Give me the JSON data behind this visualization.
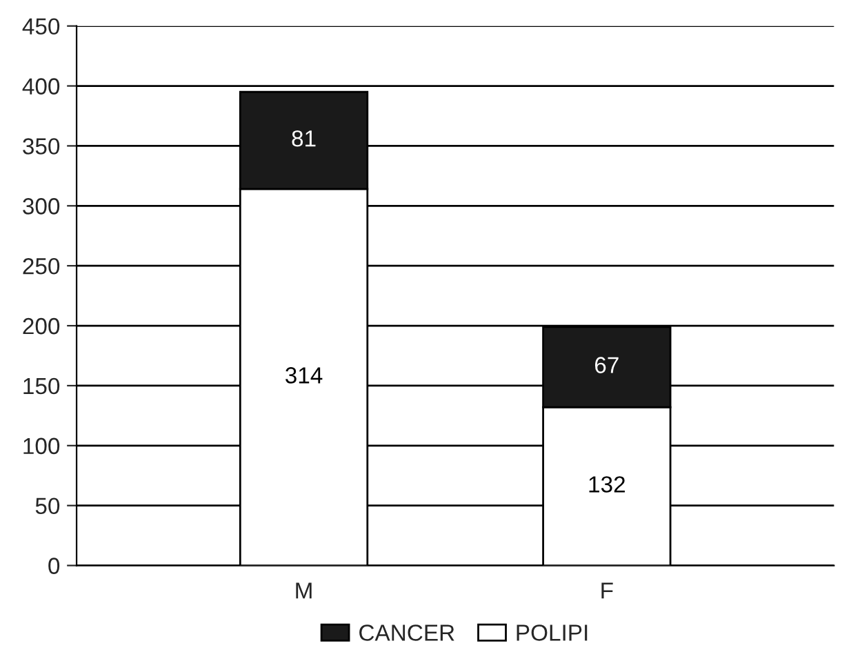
{
  "chart_data": {
    "type": "bar",
    "stacked": true,
    "categories": [
      "M",
      "F"
    ],
    "series": [
      {
        "name": "POLIPI",
        "color": "#ffffff",
        "values": [
          314,
          132
        ]
      },
      {
        "name": "CANCER",
        "color": "#1a1a1a",
        "values": [
          81,
          67
        ]
      }
    ],
    "ylim": [
      0,
      450
    ],
    "yticks": [
      0,
      50,
      100,
      150,
      200,
      250,
      300,
      350,
      400,
      450
    ],
    "grid": "y",
    "legend": "bottom",
    "data_labels": true
  }
}
